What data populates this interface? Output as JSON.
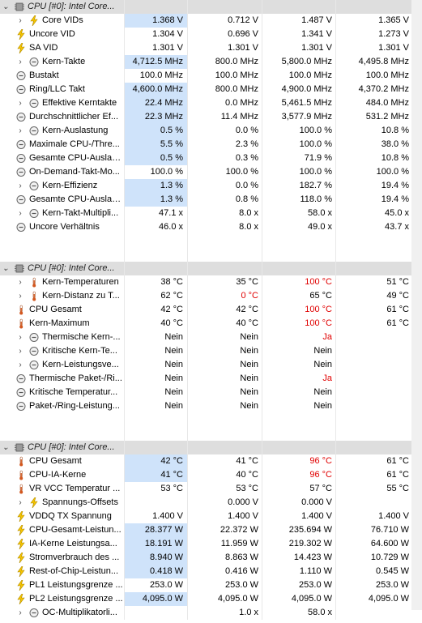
{
  "sections": [
    {
      "header": "CPU [#0]: Intel Core...",
      "rows": [
        {
          "label": "Core VIDs",
          "icon": "lightning-icon",
          "expand": true,
          "indent": 1,
          "values": [
            "1.368 V",
            "0.712 V",
            "1.487 V",
            "1.365 V"
          ],
          "hl": true
        },
        {
          "label": "Uncore VID",
          "icon": "lightning-icon",
          "expand": false,
          "indent": 0,
          "values": [
            "1.304 V",
            "0.696 V",
            "1.341 V",
            "1.273 V"
          ]
        },
        {
          "label": "SA VID",
          "icon": "lightning-icon",
          "expand": false,
          "indent": 0,
          "values": [
            "1.301 V",
            "1.301 V",
            "1.301 V",
            "1.301 V"
          ]
        },
        {
          "label": "Kern-Takte",
          "icon": "clock-icon",
          "expand": true,
          "indent": 1,
          "values": [
            "4,712.5 MHz",
            "800.0 MHz",
            "5,800.0 MHz",
            "4,495.8 MHz"
          ],
          "hl": true
        },
        {
          "label": "Bustakt",
          "icon": "clock-icon",
          "expand": false,
          "indent": 0,
          "values": [
            "100.0 MHz",
            "100.0 MHz",
            "100.0 MHz",
            "100.0 MHz"
          ]
        },
        {
          "label": "Ring/LLC Takt",
          "icon": "clock-icon",
          "expand": false,
          "indent": 0,
          "values": [
            "4,600.0 MHz",
            "800.0 MHz",
            "4,900.0 MHz",
            "4,370.2 MHz"
          ],
          "hl": true
        },
        {
          "label": "Effektive Kerntakte",
          "icon": "clock-icon",
          "expand": true,
          "indent": 1,
          "values": [
            "22.4 MHz",
            "0.0 MHz",
            "5,461.5 MHz",
            "484.0 MHz"
          ],
          "hl": true
        },
        {
          "label": "Durchschnittlicher Ef...",
          "icon": "clock-icon",
          "expand": false,
          "indent": 0,
          "values": [
            "22.3 MHz",
            "11.4 MHz",
            "3,577.9 MHz",
            "531.2 MHz"
          ],
          "hl": true
        },
        {
          "label": "Kern-Auslastung",
          "icon": "clock-icon",
          "expand": true,
          "indent": 1,
          "values": [
            "0.5 %",
            "0.0 %",
            "100.0 %",
            "10.8 %"
          ],
          "hl": true
        },
        {
          "label": "Maximale CPU-/Thre...",
          "icon": "clock-icon",
          "expand": false,
          "indent": 0,
          "values": [
            "5.5 %",
            "2.3 %",
            "100.0 %",
            "38.0 %"
          ],
          "hl": true
        },
        {
          "label": "Gesamte CPU-Auslas...",
          "icon": "clock-icon",
          "expand": false,
          "indent": 0,
          "values": [
            "0.5 %",
            "0.3 %",
            "71.9 %",
            "10.8 %"
          ],
          "hl": true
        },
        {
          "label": "On-Demand-Takt-Mo...",
          "icon": "clock-icon",
          "expand": false,
          "indent": 0,
          "values": [
            "100.0 %",
            "100.0 %",
            "100.0 %",
            "100.0 %"
          ]
        },
        {
          "label": "Kern-Effizienz",
          "icon": "clock-icon",
          "expand": true,
          "indent": 1,
          "values": [
            "1.3 %",
            "0.0 %",
            "182.7 %",
            "19.4 %"
          ],
          "hl": true
        },
        {
          "label": "Gesamte CPU-Auslas...",
          "icon": "clock-icon",
          "expand": false,
          "indent": 0,
          "values": [
            "1.3 %",
            "0.8 %",
            "118.0 %",
            "19.4 %"
          ],
          "hl": true
        },
        {
          "label": "Kern-Takt-Multipli...",
          "icon": "clock-icon",
          "expand": true,
          "indent": 1,
          "values": [
            "47.1 x",
            "8.0 x",
            "58.0 x",
            "45.0 x"
          ]
        },
        {
          "label": "Uncore Verhältnis",
          "icon": "clock-icon",
          "expand": false,
          "indent": 0,
          "values": [
            "46.0 x",
            "8.0 x",
            "49.0 x",
            "43.7 x"
          ]
        }
      ]
    },
    {
      "header": "CPU [#0]: Intel Core...",
      "rows": [
        {
          "label": "Kern-Temperaturen",
          "icon": "thermometer-icon",
          "expand": true,
          "indent": 1,
          "values": [
            "38 °C",
            "35 °C",
            "100 °C",
            "51 °C"
          ],
          "red": [
            2
          ]
        },
        {
          "label": "Kern-Distanz zu T...",
          "icon": "thermometer-icon",
          "expand": true,
          "indent": 1,
          "values": [
            "62 °C",
            "0 °C",
            "65 °C",
            "49 °C"
          ],
          "red": [
            1
          ]
        },
        {
          "label": "CPU Gesamt",
          "icon": "thermometer-icon",
          "expand": false,
          "indent": 0,
          "values": [
            "42 °C",
            "42 °C",
            "100 °C",
            "61 °C"
          ],
          "red": [
            2
          ]
        },
        {
          "label": "Kern-Maximum",
          "icon": "thermometer-icon",
          "expand": false,
          "indent": 0,
          "values": [
            "40 °C",
            "40 °C",
            "100 °C",
            "61 °C"
          ],
          "red": [
            2
          ]
        },
        {
          "label": "Thermische Kern-...",
          "icon": "clock-icon",
          "expand": true,
          "indent": 1,
          "values": [
            "Nein",
            "Nein",
            "Ja",
            ""
          ],
          "red": [
            2
          ]
        },
        {
          "label": "Kritische Kern-Te...",
          "icon": "clock-icon",
          "expand": true,
          "indent": 1,
          "values": [
            "Nein",
            "Nein",
            "Nein",
            ""
          ]
        },
        {
          "label": "Kern-Leistungsve...",
          "icon": "clock-icon",
          "expand": true,
          "indent": 1,
          "values": [
            "Nein",
            "Nein",
            "Nein",
            ""
          ]
        },
        {
          "label": "Thermische Paket-/Ri...",
          "icon": "clock-icon",
          "expand": false,
          "indent": 0,
          "values": [
            "Nein",
            "Nein",
            "Ja",
            ""
          ],
          "red": [
            2
          ]
        },
        {
          "label": "Kritische Temperatur...",
          "icon": "clock-icon",
          "expand": false,
          "indent": 0,
          "values": [
            "Nein",
            "Nein",
            "Nein",
            ""
          ]
        },
        {
          "label": "Paket-/Ring-Leistung...",
          "icon": "clock-icon",
          "expand": false,
          "indent": 0,
          "values": [
            "Nein",
            "Nein",
            "Nein",
            ""
          ]
        }
      ]
    },
    {
      "header": "CPU [#0]: Intel Core...",
      "rows": [
        {
          "label": "CPU Gesamt",
          "icon": "thermometer-icon",
          "expand": false,
          "indent": 0,
          "values": [
            "42 °C",
            "41 °C",
            "96 °C",
            "61 °C"
          ],
          "red": [
            2
          ],
          "hl": true
        },
        {
          "label": "CPU-IA-Kerne",
          "icon": "thermometer-icon",
          "expand": false,
          "indent": 0,
          "values": [
            "41 °C",
            "40 °C",
            "96 °C",
            "61 °C"
          ],
          "red": [
            2
          ],
          "hl": true
        },
        {
          "label": "VR VCC Temperatur ...",
          "icon": "thermometer-icon",
          "expand": false,
          "indent": 0,
          "values": [
            "53 °C",
            "53 °C",
            "57 °C",
            "55 °C"
          ]
        },
        {
          "label": "Spannungs-Offsets",
          "icon": "lightning-icon",
          "expand": true,
          "indent": 1,
          "values": [
            "",
            "0.000 V",
            "0.000 V",
            ""
          ]
        },
        {
          "label": "VDDQ TX Spannung",
          "icon": "lightning-icon",
          "expand": false,
          "indent": 0,
          "values": [
            "1.400 V",
            "1.400 V",
            "1.400 V",
            "1.400 V"
          ]
        },
        {
          "label": "CPU-Gesamt-Leistun...",
          "icon": "lightning-icon",
          "expand": false,
          "indent": 0,
          "values": [
            "28.377 W",
            "22.372 W",
            "235.694 W",
            "76.710 W"
          ],
          "hl": true
        },
        {
          "label": "IA-Kerne Leistungsa...",
          "icon": "lightning-icon",
          "expand": false,
          "indent": 0,
          "values": [
            "18.191 W",
            "11.959 W",
            "219.302 W",
            "64.600 W"
          ],
          "hl": true
        },
        {
          "label": "Stromverbrauch des ...",
          "icon": "lightning-icon",
          "expand": false,
          "indent": 0,
          "values": [
            "8.940 W",
            "8.863 W",
            "14.423 W",
            "10.729 W"
          ],
          "hl": true
        },
        {
          "label": "Rest-of-Chip-Leistun...",
          "icon": "lightning-icon",
          "expand": false,
          "indent": 0,
          "values": [
            "0.418 W",
            "0.416 W",
            "1.110 W",
            "0.545 W"
          ],
          "hl": true
        },
        {
          "label": "PL1 Leistungsgrenze ...",
          "icon": "lightning-icon",
          "expand": false,
          "indent": 0,
          "values": [
            "253.0 W",
            "253.0 W",
            "253.0 W",
            "253.0 W"
          ]
        },
        {
          "label": "PL2 Leistungsgrenze ...",
          "icon": "lightning-icon",
          "expand": false,
          "indent": 0,
          "values": [
            "4,095.0 W",
            "4,095.0 W",
            "4,095.0 W",
            "4,095.0 W"
          ],
          "hl": true
        },
        {
          "label": "OC-Multiplikatorli...",
          "icon": "clock-icon",
          "expand": true,
          "indent": 1,
          "values": [
            "",
            "1.0 x",
            "58.0 x",
            ""
          ]
        }
      ]
    }
  ],
  "colors": {
    "highlight": "#cfe3fa",
    "alert": "#e00000",
    "header_bg": "#dedede"
  }
}
